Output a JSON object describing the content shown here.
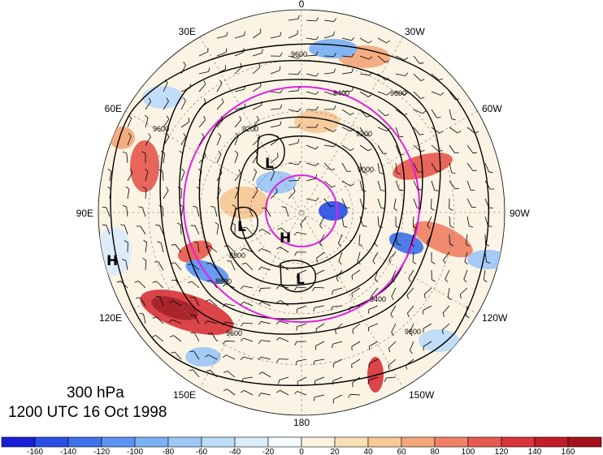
{
  "title": {
    "level": "300 hPa",
    "time": "1200 UTC 16 Oct 1998"
  },
  "longitude_labels": [
    "0",
    "30W",
    "60W",
    "90W",
    "120W",
    "150W",
    "180",
    "150E",
    "120E",
    "90E",
    "60E",
    "30E"
  ],
  "contour_labels": [
    "9600",
    "9400",
    "9200",
    "9000",
    "8800",
    "9600",
    "9200",
    "9600",
    "9600",
    "9400",
    "8800",
    "9600"
  ],
  "pressure_systems": [
    {
      "symbol": "L"
    },
    {
      "symbol": "L"
    },
    {
      "symbol": "L"
    },
    {
      "symbol": "H"
    },
    {
      "symbol": "H"
    }
  ],
  "colorbar": {
    "ticks": [
      "-160",
      "-140",
      "-120",
      "-100",
      "-80",
      "-60",
      "-40",
      "-20",
      "0",
      "20",
      "40",
      "60",
      "80",
      "100",
      "120",
      "140",
      "160"
    ],
    "colors": [
      "#1a1fd6",
      "#2b4fe6",
      "#3f73ec",
      "#5b94f2",
      "#7ab0f5",
      "#9cc7f7",
      "#bcdcf9",
      "#dcecfb",
      "#f6fbff",
      "#fdf3dc",
      "#fbe0b6",
      "#f8c896",
      "#f4a77a",
      "#ef8266",
      "#e75a50",
      "#d8353a",
      "#c21d29",
      "#a3121c"
    ]
  }
}
